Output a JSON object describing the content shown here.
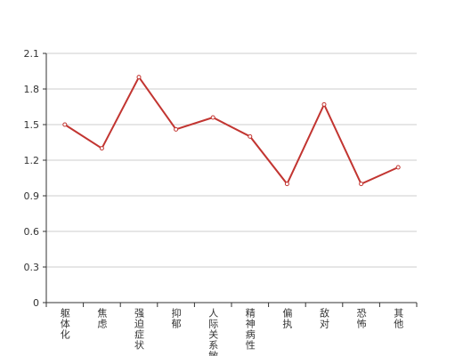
{
  "chart_data": {
    "type": "line",
    "categories": [
      "躯体化",
      "焦虑",
      "强迫症状",
      "抑郁",
      "人际关系敏感",
      "精神病性",
      "偏执",
      "敌对",
      "恐怖",
      "其他"
    ],
    "values": [
      1.5,
      1.3,
      1.9,
      1.46,
      1.56,
      1.4,
      1.0,
      1.67,
      1.0,
      1.14
    ],
    "color": "#c23531",
    "ylim": [
      0,
      2.1
    ],
    "yticks": [
      0,
      0.3,
      0.6,
      0.9,
      1.2,
      1.5,
      1.8,
      2.1
    ],
    "grid": true
  }
}
